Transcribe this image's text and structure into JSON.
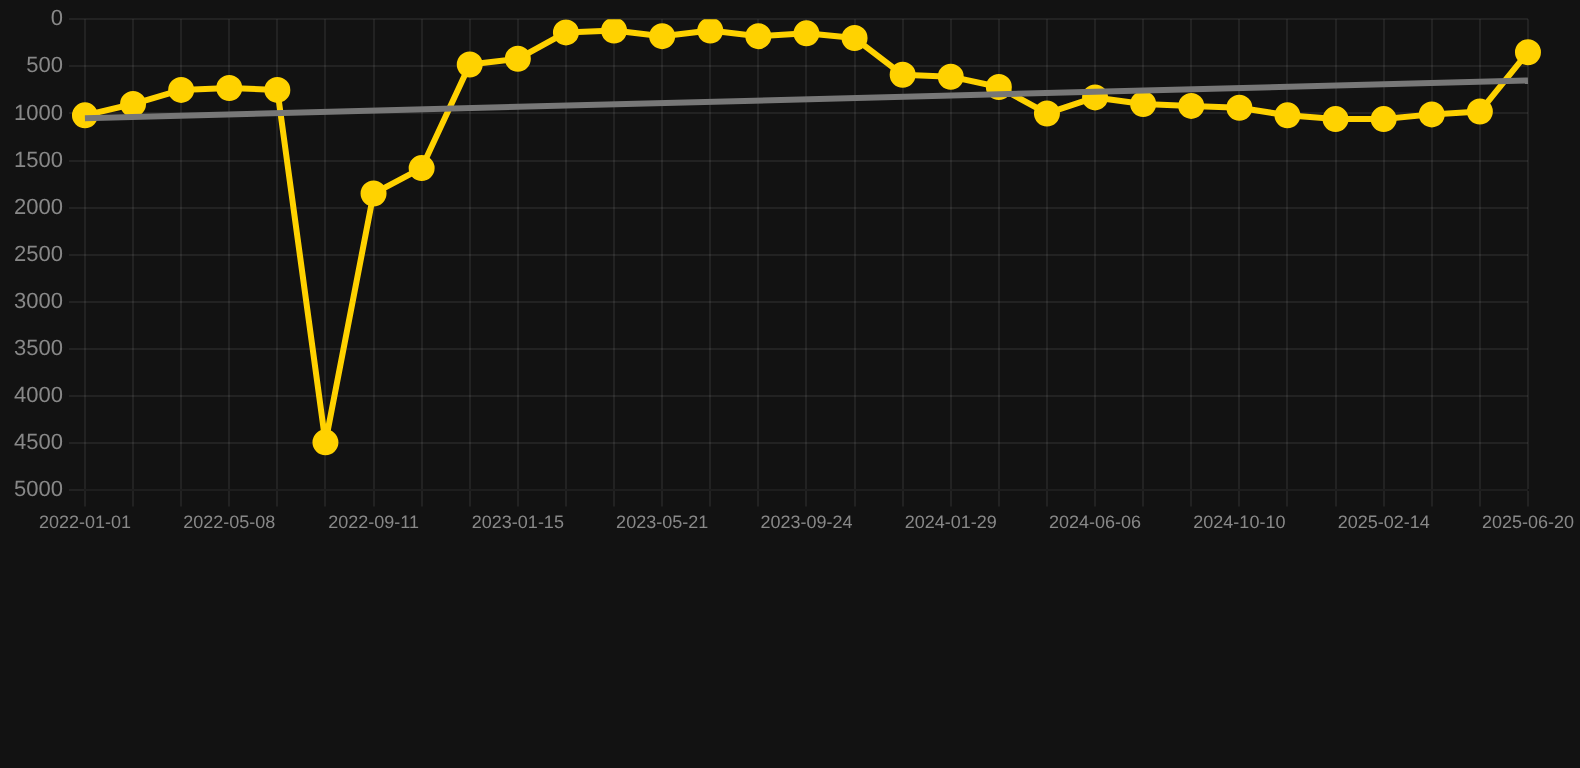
{
  "chart_data": {
    "type": "line",
    "categories": [
      "2022-01-01",
      null,
      null,
      "2022-05-08",
      null,
      null,
      "2022-09-11",
      null,
      null,
      "2023-01-15",
      null,
      null,
      "2023-05-21",
      null,
      null,
      "2023-09-24",
      null,
      null,
      "2024-01-29",
      null,
      null,
      "2024-06-06",
      null,
      null,
      "2024-10-10",
      null,
      null,
      "2025-02-14",
      null,
      null,
      "2025-06-20"
    ],
    "series": [
      {
        "color": "#ffd200",
        "marker": "circle",
        "values": [
          1020,
          900,
          750,
          730,
          750,
          4490,
          1850,
          1580,
          480,
          420,
          140,
          120,
          180,
          120,
          180,
          150,
          200,
          590,
          610,
          720,
          1000,
          830,
          900,
          920,
          940,
          1020,
          1060,
          1060,
          1010,
          980,
          350
        ]
      },
      {
        "type": "line",
        "color": "#777777",
        "marker": "none",
        "values": [
          1050,
          null,
          null,
          null,
          null,
          null,
          null,
          null,
          null,
          null,
          null,
          null,
          null,
          null,
          null,
          null,
          null,
          null,
          null,
          null,
          null,
          null,
          null,
          null,
          null,
          null,
          null,
          null,
          null,
          null,
          650
        ]
      }
    ],
    "ylim": [
      5000,
      0
    ],
    "yticks": [
      0,
      500,
      1000,
      1500,
      2000,
      2500,
      3000,
      3500,
      4000,
      4500,
      5000
    ],
    "grid": true,
    "legend": false,
    "line_style": "solid"
  }
}
